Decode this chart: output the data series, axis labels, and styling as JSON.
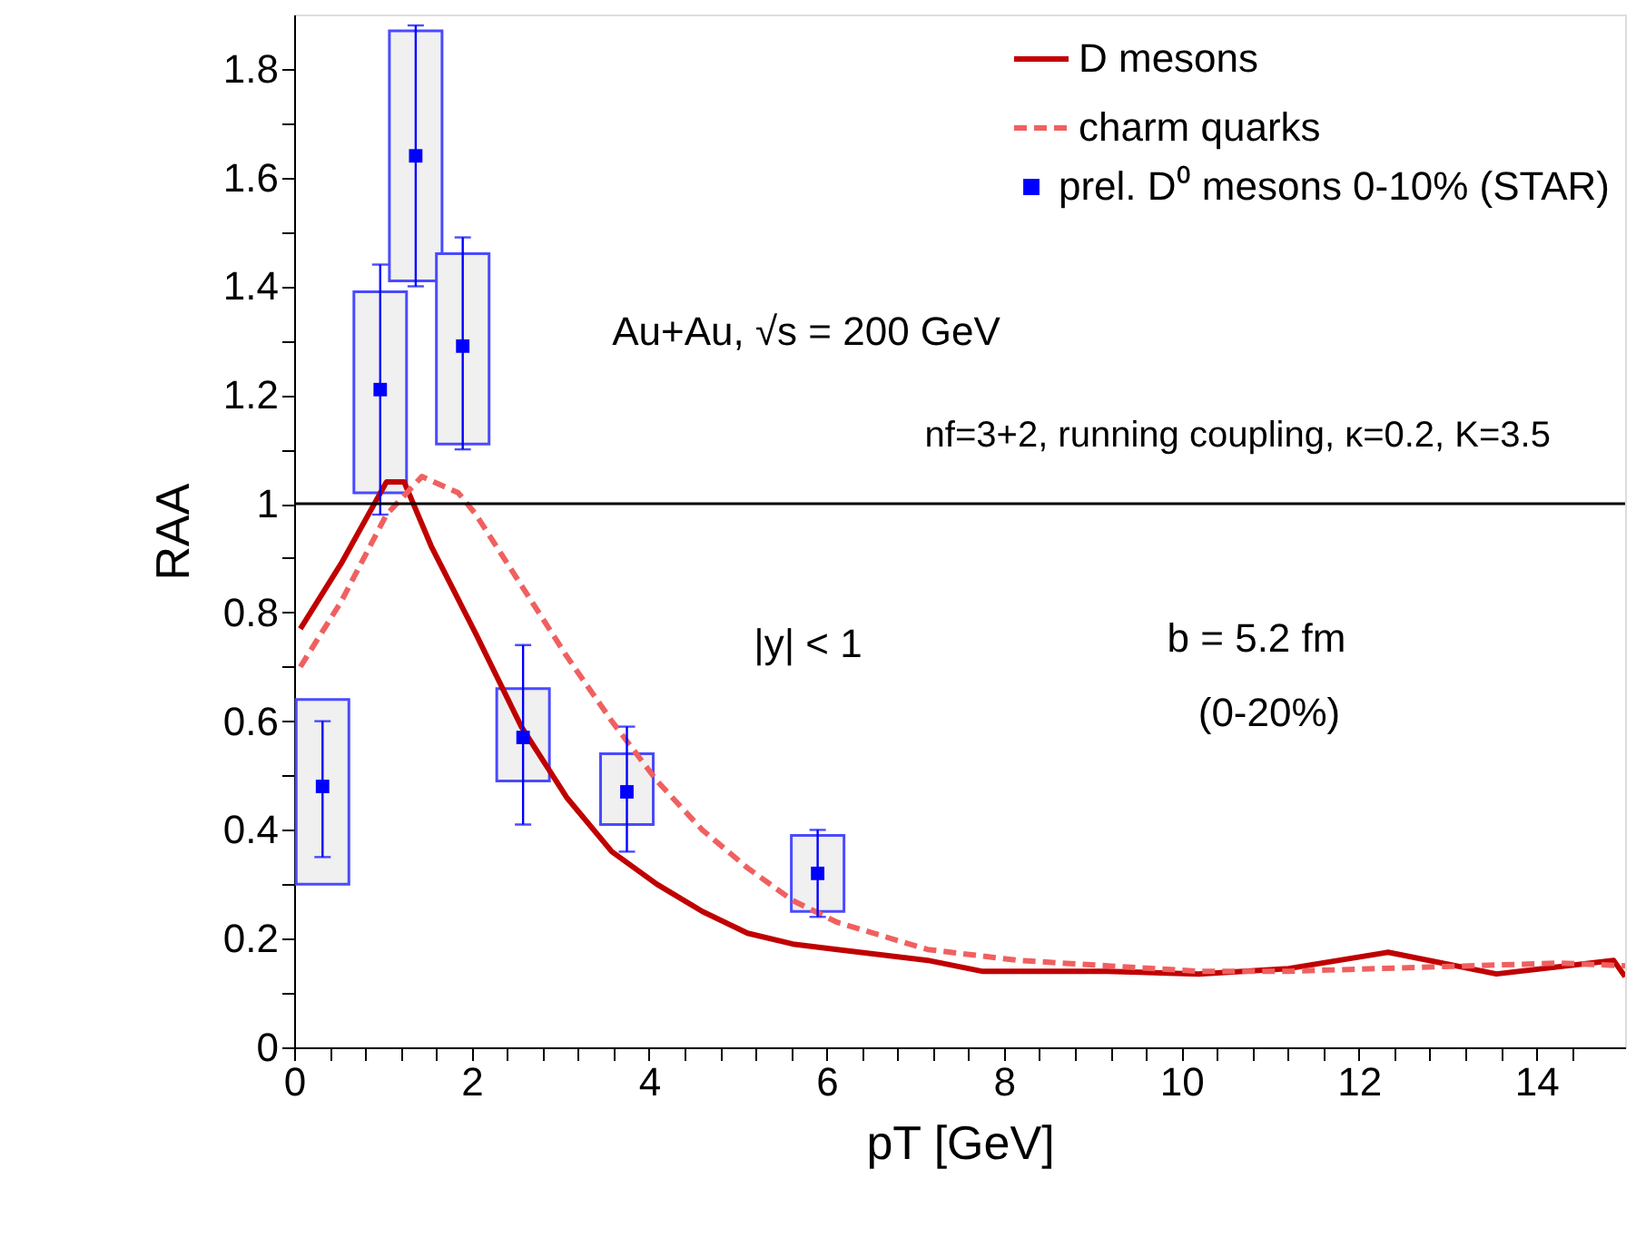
{
  "chart_data": {
    "type": "line",
    "xlabel": "pT [GeV]",
    "ylabel": "RAA",
    "xlim": [
      0,
      15
    ],
    "ylim": [
      0,
      1.9
    ],
    "xticks": [
      0,
      {
        "value": 0.4,
        "label": null
      },
      {
        "value": 0.8,
        "label": null
      },
      {
        "value": 1.2,
        "label": null
      },
      {
        "value": 1.6,
        "label": null
      },
      2,
      {
        "value": 2.4,
        "label": null
      },
      {
        "value": 2.8,
        "label": null
      },
      {
        "value": 3.2,
        "label": null
      },
      {
        "value": 3.6,
        "label": null
      },
      4,
      {
        "value": 4.4,
        "label": null
      },
      {
        "value": 4.8,
        "label": null
      },
      {
        "value": 5.2,
        "label": null
      },
      {
        "value": 5.6,
        "label": null
      },
      6,
      {
        "value": 6.4,
        "label": null
      },
      {
        "value": 6.8,
        "label": null
      },
      {
        "value": 7.2,
        "label": null
      },
      {
        "value": 7.6,
        "label": null
      },
      8,
      {
        "value": 8.4,
        "label": null
      },
      {
        "value": 8.8,
        "label": null
      },
      {
        "value": 9.2,
        "label": null
      },
      {
        "value": 9.6,
        "label": null
      },
      10,
      {
        "value": 10.4,
        "label": null
      },
      {
        "value": 10.8,
        "label": null
      },
      {
        "value": 11.2,
        "label": null
      },
      {
        "value": 11.6,
        "label": null
      },
      12,
      {
        "value": 12.4,
        "label": null
      },
      {
        "value": 12.8,
        "label": null
      },
      {
        "value": 13.2,
        "label": null
      },
      {
        "value": 13.6,
        "label": null
      },
      14,
      {
        "value": 14.4,
        "label": null
      }
    ],
    "yticks": [
      0,
      {
        "value": 0.1,
        "label": null
      },
      0.2,
      {
        "value": 0.3,
        "label": null
      },
      0.4,
      {
        "value": 0.5,
        "label": null
      },
      0.6,
      {
        "value": 0.7,
        "label": null
      },
      0.8,
      {
        "value": 0.9,
        "label": null
      },
      1,
      {
        "value": 1.1,
        "label": null
      },
      1.2,
      {
        "value": 1.3,
        "label": null
      },
      1.4,
      {
        "value": 1.5,
        "label": null
      },
      1.6,
      {
        "value": 1.7,
        "label": null
      },
      1.8
    ],
    "grid": false,
    "legend": "top right",
    "series": [
      {
        "name": "D mesons",
        "color": "#c00000",
        "line_style": "solid",
        "x": [
          0.07,
          0.53,
          1.04,
          1.24,
          1.55,
          2.05,
          2.56,
          3.07,
          3.58,
          4.09,
          4.6,
          5.11,
          5.62,
          6.12,
          7.14,
          7.75,
          8.16,
          9.17,
          10.19,
          11.21,
          12.33,
          13.55,
          14.87,
          15
        ],
        "values": [
          0.77,
          0.89,
          1.04,
          1.04,
          0.92,
          0.76,
          0.59,
          0.46,
          0.36,
          0.3,
          0.25,
          0.21,
          0.19,
          0.18,
          0.16,
          0.14,
          0.14,
          0.14,
          0.135,
          0.145,
          0.175,
          0.135,
          0.16,
          0.13
        ]
      },
      {
        "name": "charm quarks",
        "color": "#f06060",
        "line_style": "dashed",
        "x": [
          0.07,
          0.53,
          1.04,
          1.44,
          1.85,
          2.05,
          2.56,
          3.07,
          3.58,
          4.09,
          4.6,
          5.11,
          5.62,
          6.12,
          7.14,
          8.16,
          9.17,
          10.19,
          11.21,
          12.23,
          13.24,
          14.26,
          15
        ],
        "values": [
          0.7,
          0.82,
          0.98,
          1.05,
          1.02,
          0.98,
          0.85,
          0.72,
          0.6,
          0.49,
          0.4,
          0.33,
          0.27,
          0.23,
          0.18,
          0.16,
          0.15,
          0.14,
          0.14,
          0.145,
          0.15,
          0.155,
          0.15
        ]
      },
      {
        "type": "bar",
        "color": "#f0f0f0",
        "x": [
          0.32,
          0.97,
          1.37,
          1.9,
          2.58,
          3.75,
          5.9
        ],
        "base": [
          0.3,
          1.02,
          1.41,
          1.11,
          0.49,
          0.41,
          0.25
        ],
        "values": [
          0.34,
          0.37,
          0.46,
          0.35,
          0.17,
          0.13,
          0.14
        ]
      },
      {
        "name": "prel. D⁰ mesons 0-10% (STAR)",
        "type": "scatter",
        "color": "#0000ff",
        "marker": "square",
        "x": [
          0.32,
          0.97,
          1.37,
          1.9,
          2.58,
          3.75,
          5.9
        ],
        "values": [
          0.48,
          1.21,
          1.64,
          1.29,
          0.57,
          0.47,
          0.32
        ],
        "errors": [
          [
            0.35,
            0.6
          ],
          [
            0.98,
            1.44
          ],
          [
            1.4,
            1.88
          ],
          [
            1.1,
            1.49
          ],
          [
            0.41,
            0.74
          ],
          [
            0.36,
            0.59
          ],
          [
            0.24,
            0.4
          ]
        ]
      }
    ],
    "ref_lines": [
      {
        "axis": "y",
        "value": 1,
        "color": "#000000"
      }
    ],
    "annotations": [
      "Au+Au, √s = 200 GeV",
      "nf=3+2, running coupling, κ=0.2, K=3.5",
      "|y| < 1",
      "b = 5.2 fm",
      "(0-20%)"
    ]
  }
}
